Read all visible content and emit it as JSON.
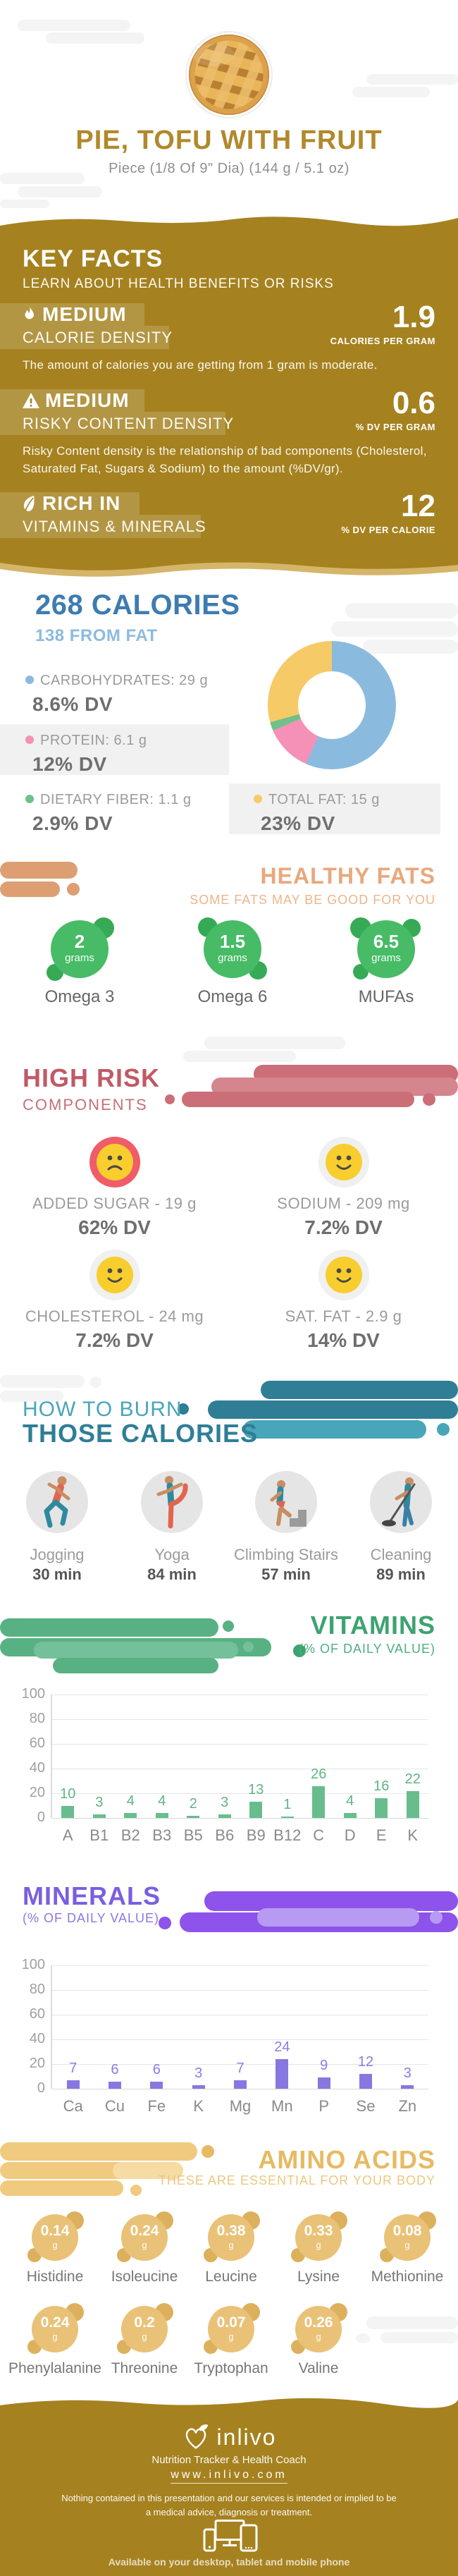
{
  "colors": {
    "gold": "#a5821f",
    "gold_wave": "#d5b569",
    "title_gold": "#b1892b",
    "blue": "#3e7cb0",
    "blue_light": "#8cbbdf",
    "salmon": "#e8a87c",
    "salmon_light": "#edb58a",
    "green_circle": "#47bb66",
    "green_blob": "#36aa55",
    "risk": "#c05a66",
    "risk_shape": "#cb6e78",
    "risk_shape_light": "#d5858d",
    "emoji_yellow": "#f8cd2e",
    "emoji_ring_red": "#f05c68",
    "emoji_ring_gray": "#f0f0f0",
    "teal": "#2f7e96",
    "teal_light": "#49a5ba",
    "vit_green": "#3da371",
    "vit_shape": "#57b183",
    "vit_shape_light": "#74c09a",
    "purple": "#7a5fe0",
    "purple_shape": "#8e53ea",
    "purple_shape_light": "#b79bf3",
    "amino_gold": "#e7ba62",
    "amino_shape": "#f0ca7e",
    "amino_circle": "#e9c278",
    "amino_blob": "#ddb05e",
    "cloud": "#f4f4f4"
  },
  "header": {
    "title": "PIE, TOFU WITH FRUIT",
    "serving": "Piece (1/8 Of 9\" Dia) (144 g / 5.1 oz)"
  },
  "key_facts": {
    "title": "KEY FACTS",
    "subtitle": "LEARN ABOUT HEALTH BENEFITS OR RISKS",
    "facts": [
      {
        "icon": "flame-icon",
        "level": "MEDIUM",
        "label": "CALORIE DENSITY",
        "value": "1.9",
        "unit": "CALORIES PER GRAM",
        "desc": "The amount of calories you are getting from 1 gram is moderate."
      },
      {
        "icon": "warning-icon",
        "level": "MEDIUM",
        "label": "RISKY CONTENT DENSITY",
        "value": "0.6",
        "unit": "% DV PER GRAM",
        "desc": "Risky Content density is the relationship of bad components (Cholesterol, Saturated Fat, Sugars & Sodium) to the amount (%DV/gr)."
      },
      {
        "icon": "leaf-icon",
        "level": "RICH  IN",
        "label": "VITAMINS & MINERALS",
        "value": "12",
        "unit": "% DV PER CALORIE",
        "desc": ""
      }
    ]
  },
  "calories": {
    "title": "268 CALORIES",
    "subtitle": "138 FROM FAT",
    "macros": [
      {
        "name": "CARBOHYDRATES: 29 g",
        "dv": "8.6% DV"
      },
      {
        "name": "PROTEIN: 6.1 g",
        "dv": "12% DV"
      },
      {
        "name": "DIETARY FIBER: 1.1 g",
        "dv": "2.9% DV"
      },
      {
        "name": "TOTAL FAT: 15 g",
        "dv": "23% DV"
      }
    ]
  },
  "healthy_fats": {
    "title": "HEALTHY FATS",
    "subtitle": "SOME FATS MAY BE GOOD FOR YOU",
    "items": [
      {
        "value": "2",
        "unit": "grams",
        "label": "Omega 3"
      },
      {
        "value": "1.5",
        "unit": "grams",
        "label": "Omega 6"
      },
      {
        "value": "6.5",
        "unit": "grams",
        "label": "MUFAs"
      }
    ]
  },
  "high_risk": {
    "title": "HIGH RISK",
    "subtitle": "COMPONENTS",
    "items": [
      {
        "label": "ADDED SUGAR - 19 g",
        "dv": "62% DV",
        "mood": "sad"
      },
      {
        "label": "SODIUM - 209 mg",
        "dv": "7.2% DV",
        "mood": "happy"
      },
      {
        "label": "CHOLESTEROL - 24 mg",
        "dv": "7.2% DV",
        "mood": "happy"
      },
      {
        "label": "SAT. FAT - 2.9 g",
        "dv": "14% DV",
        "mood": "happy"
      }
    ]
  },
  "burn": {
    "title_line1": "HOW TO BURN",
    "title_line2": "THOSE CALORIES",
    "activities": [
      {
        "name": "Jogging",
        "time": "30 min"
      },
      {
        "name": "Yoga",
        "time": "84 min"
      },
      {
        "name": "Climbing Stairs",
        "time": "57 min"
      },
      {
        "name": "Cleaning",
        "time": "89 min"
      }
    ]
  },
  "chart_data": [
    {
      "id": "macros",
      "type": "pie",
      "title": "268 CALORIES",
      "subtitle": "138 FROM FAT",
      "unit": "grams",
      "legend_position": "left",
      "slices": [
        {
          "label": "CARBOHYDRATES",
          "grams": 29,
          "dv_percent": 8.6,
          "color": "#8abbdf"
        },
        {
          "label": "PROTEIN",
          "grams": 6.1,
          "dv_percent": 12,
          "color": "#f591b6"
        },
        {
          "label": "DIETARY FIBER",
          "grams": 1.1,
          "dv_percent": 2.9,
          "color": "#6fc08b"
        },
        {
          "label": "TOTAL FAT",
          "grams": 15,
          "dv_percent": 23,
          "color": "#f6ca67"
        }
      ]
    },
    {
      "id": "vitamins",
      "type": "bar",
      "title": "VITAMINS",
      "subtitle": "(% OF DAILY VALUE)",
      "categories": [
        "A",
        "B1",
        "B2",
        "B3",
        "B5",
        "B6",
        "B9",
        "B12",
        "C",
        "D",
        "E",
        "K"
      ],
      "values": [
        10,
        3,
        4,
        4,
        2,
        3,
        13,
        1,
        26,
        4,
        16,
        22
      ],
      "xlabel": "",
      "ylabel": "% of Daily Value",
      "ylim": [
        0,
        100
      ],
      "yticks": [
        0,
        20,
        40,
        60,
        80,
        100
      ],
      "grid": true,
      "legend_position": "none",
      "bar_color": "#68bd8d",
      "label_color": "#5fb585"
    },
    {
      "id": "minerals",
      "type": "bar",
      "title": "MINERALS",
      "subtitle": "(% OF DAILY VALUE)",
      "categories": [
        "Ca",
        "Cu",
        "Fe",
        "K",
        "Mg",
        "Mn",
        "P",
        "Se",
        "Zn"
      ],
      "values": [
        7,
        6,
        6,
        3,
        7,
        24,
        9,
        12,
        3
      ],
      "xlabel": "",
      "ylabel": "% of Daily Value",
      "ylim": [
        0,
        100
      ],
      "yticks": [
        0,
        20,
        40,
        60,
        80,
        100
      ],
      "grid": true,
      "legend_position": "none",
      "bar_color": "#8678e0",
      "label_color": "#8b7ce8"
    }
  ],
  "amino": {
    "title": "AMINO ACIDS",
    "subtitle": "THESE ARE ESSENTIAL FOR YOUR BODY",
    "unit": "g",
    "items": [
      {
        "value": "0.14",
        "label": "Histidine"
      },
      {
        "value": "0.24",
        "label": "Isoleucine"
      },
      {
        "value": "0.38",
        "label": "Leucine"
      },
      {
        "value": "0.33",
        "label": "Lysine"
      },
      {
        "value": "0.08",
        "label": "Methionine"
      },
      {
        "value": "0.24",
        "label": "Phenylalanine"
      },
      {
        "value": "0.2",
        "label": "Threonine"
      },
      {
        "value": "0.07",
        "label": "Tryptophan"
      },
      {
        "value": "0.26",
        "label": "Valine"
      }
    ]
  },
  "footer": {
    "brand": "inlivo",
    "tagline": "Nutrition Tracker & Health Coach",
    "url": "www.inlivo.com",
    "disclaimer": "Nothing contained in this presentation and our services is intended or implied to be a medical advice, diagnosis or treatment.",
    "availability": "Available on your desktop, tablet and mobile phone"
  }
}
